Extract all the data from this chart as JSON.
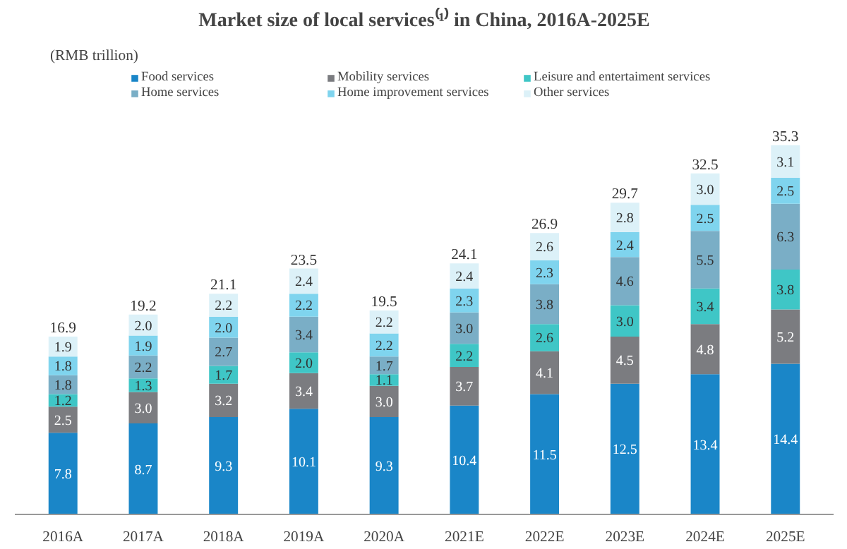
{
  "chart_data": {
    "type": "bar",
    "title": "Market size of local services⁽¹⁾ in China, 2016A-2025E",
    "annotations": [
      "(RMB trillion)"
    ],
    "categories": [
      "2016A",
      "2017A",
      "2018A",
      "2019A",
      "2020A",
      "2021E",
      "2022E",
      "2023E",
      "2024E",
      "2025E"
    ],
    "stacked": true,
    "legend": "top",
    "tick_labels": "x",
    "series": [
      {
        "name": "Food services",
        "color": "#1a86c8",
        "values": [
          7.8,
          8.7,
          9.3,
          10.1,
          9.3,
          10.4,
          11.5,
          12.5,
          13.4,
          14.4
        ],
        "value_labels": [
          "7.8",
          "8.7",
          "9.3",
          "10.1",
          "9.3",
          "10.4",
          "11.5",
          "12.5",
          "13.4",
          "14.4"
        ]
      },
      {
        "name": "Mobility services",
        "color": "#7b7c80",
        "values": [
          2.5,
          3.0,
          3.2,
          3.4,
          3.0,
          3.7,
          4.1,
          4.5,
          4.8,
          5.2
        ],
        "value_labels": [
          "2.5",
          "3.0",
          "3.2",
          "3.4",
          "3.0",
          "3.7",
          "4.1",
          "4.5",
          "4.8",
          "5.2"
        ]
      },
      {
        "name": "Leisure and entertaiment services",
        "color": "#3fc6c6",
        "values": [
          1.2,
          1.3,
          1.7,
          2.0,
          1.1,
          2.2,
          2.6,
          3.0,
          3.4,
          3.8
        ],
        "value_labels": [
          "1.2",
          "1.3",
          "1.7",
          "2.0",
          "1.1",
          "2.2",
          "2.6",
          "3.0",
          "3.4",
          "3.8"
        ]
      },
      {
        "name": "Home services",
        "color": "#7aaec6",
        "values": [
          1.8,
          2.2,
          2.7,
          3.4,
          1.7,
          3.0,
          3.8,
          4.6,
          5.5,
          6.3
        ],
        "value_labels": [
          "1.8",
          "2.2",
          "2.7",
          "3.4",
          "1.7",
          "3.0",
          "3.8",
          "4.6",
          "5.5",
          "6.3"
        ]
      },
      {
        "name": "Home improvement services",
        "color": "#7fd4ee",
        "values": [
          1.8,
          1.9,
          2.0,
          2.2,
          2.2,
          2.3,
          2.3,
          2.4,
          2.5,
          2.5
        ],
        "value_labels": [
          "1.8",
          "1.9",
          "2.0",
          "2.2",
          "2.2",
          "2.3",
          "2.3",
          "2.4",
          "2.5",
          "2.5"
        ]
      },
      {
        "name": "Other services",
        "color": "#dcf1f8",
        "values": [
          1.9,
          2.0,
          2.2,
          2.4,
          2.2,
          2.4,
          2.6,
          2.8,
          3.0,
          3.1
        ],
        "value_labels": [
          "1.9",
          "2.0",
          "2.2",
          "2.4",
          "2.2",
          "2.4",
          "2.6",
          "2.8",
          "3.0",
          "3.1"
        ]
      }
    ],
    "totals": [
      "16.9",
      "19.2",
      "21.1",
      "23.5",
      "19.5",
      "24.1",
      "26.9",
      "29.7",
      "32.5",
      "35.3"
    ]
  }
}
